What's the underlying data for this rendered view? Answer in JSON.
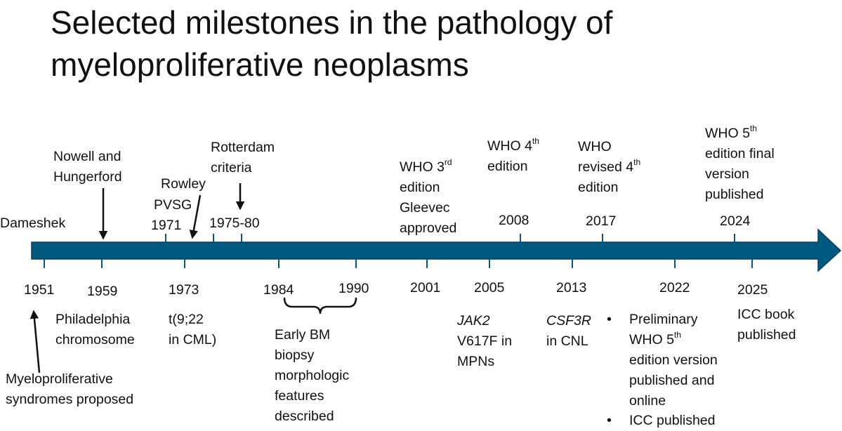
{
  "title": {
    "line1": "Selected milestones in the pathology of",
    "line2": "myeloproliferative neoplasms"
  },
  "colors": {
    "timeline": "#005a80",
    "timeline_stroke": "#0b3d58",
    "text": "#111111"
  },
  "above": {
    "dameshek": "Dameshek",
    "nowell_1": "Nowell and",
    "nowell_2": "Hungerford",
    "rowley": "Rowley",
    "pvsg": "PVSG",
    "y1971": "1971",
    "rotterdam_1": "Rotterdam",
    "rotterdam_2": "criteria",
    "y1975": "1975-80",
    "who3_a": "WHO 3",
    "who3_sup": "rd",
    "who3_b": "edition",
    "gleevec_1": "Gleevec",
    "gleevec_2": "approved",
    "who4_a": "WHO 4",
    "who4_sup": "th",
    "who4_b": "edition",
    "y2008": "2008",
    "whor_1": "WHO",
    "whor_2a": "revised 4",
    "whor_sup": "th",
    "whor_3": "edition",
    "y2017": "2017",
    "who5_a": "WHO 5",
    "who5_sup": "th",
    "who5_b": "edition final",
    "who5_c": "version",
    "who5_d": "published",
    "y2024": "2024"
  },
  "below": {
    "y1951": "1951",
    "y1959": "1959",
    "y1973": "1973",
    "y1984": "1984",
    "y1990": "1990",
    "y2001": "2001",
    "y2005": "2005",
    "y2013": "2013",
    "y2022": "2022",
    "y2025": "2025",
    "phil_1": "Philadelphia",
    "phil_2": "chromosome",
    "t922_1": "t(9;22",
    "t922_2": "in CML)",
    "early_1": "Early BM",
    "early_2": "biopsy",
    "early_3": "morphologic",
    "early_4": "features",
    "early_5": "described",
    "jak2_gene": "JAK2",
    "jak2_2": "V617F in",
    "jak2_3": "MPNs",
    "csf_gene": "CSF3R",
    "csf_2": "in CNL",
    "pre_1": "Preliminary",
    "pre_2a": "WHO 5",
    "pre_sup": "th",
    "pre_3": "edition version",
    "pre_4": "published and",
    "pre_5": "online",
    "icc_pub": "ICC published",
    "bullet": "•",
    "iccbook_1": "ICC book",
    "iccbook_2": "published",
    "myelo_1": "Myeloproliferative",
    "myelo_2": "syndromes proposed"
  }
}
